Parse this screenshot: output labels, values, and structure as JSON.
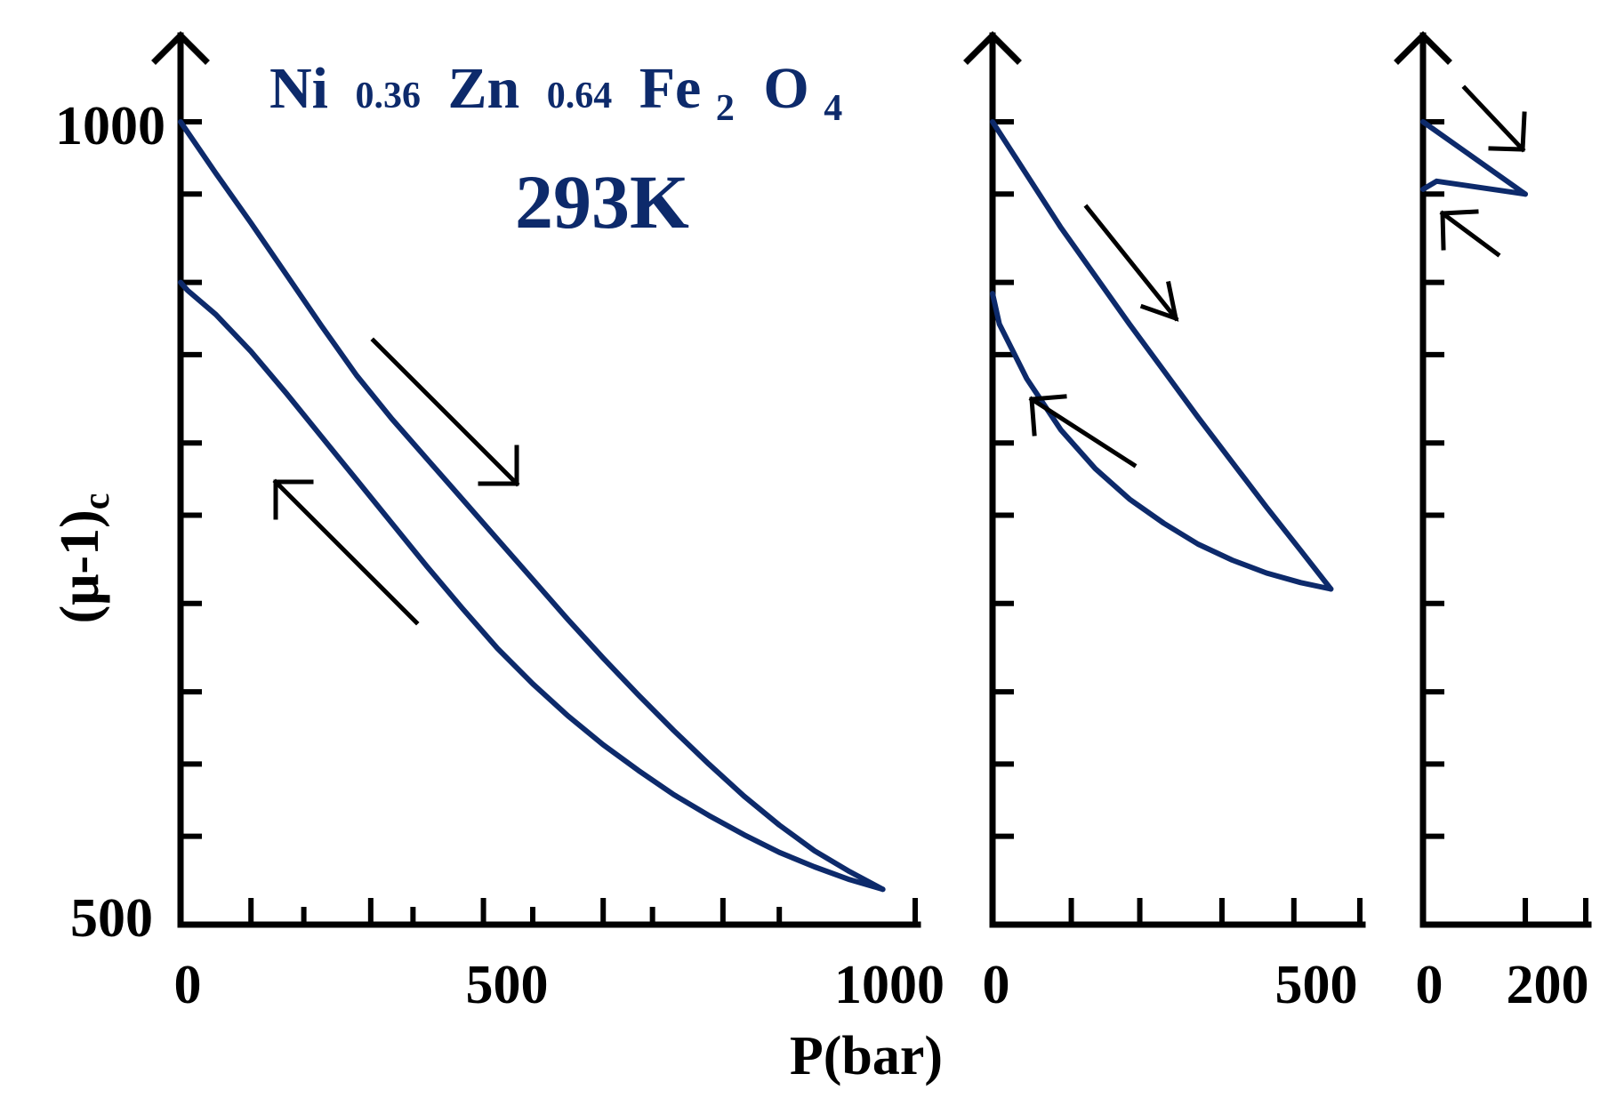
{
  "chart_data": {
    "type": "line",
    "title": {
      "formula": [
        {
          "text": "Ni",
          "sub": "0.36"
        },
        {
          "text": "Zn",
          "sub": "0.64"
        },
        {
          "text": "Fe",
          "sub": "2"
        },
        {
          "text": "O",
          "sub": "4"
        }
      ],
      "temperature": "293K"
    },
    "xlabel": "P(bar)",
    "ylabel": "(μ-1)",
    "ylabel_sub": "c",
    "ylim": [
      500,
      1000
    ],
    "yticks_labeled": [
      "1000",
      "500"
    ],
    "ytick_values": [
      1000,
      955,
      900,
      855,
      800,
      755,
      700,
      645,
      600,
      555,
      500
    ],
    "color": "#0d2a6b",
    "panels": [
      {
        "name": "sweep-1000-bar",
        "xlim": [
          0,
          1000
        ],
        "xtick_labels": [
          "0",
          "500",
          "1000"
        ],
        "xtick_values": [
          0,
          100,
          175,
          270,
          330,
          430,
          500,
          600,
          670,
          770,
          850,
          935
        ],
        "series": [
          {
            "name": "compression",
            "x": [
              0,
              50,
              100,
              150,
              200,
              250,
              300,
              350,
              400,
              450,
              500,
              550,
              600,
              650,
              700,
              750,
              800,
              850,
              900,
              950,
              997
            ],
            "y": [
              1000,
              968,
              937,
              905,
              873,
              842,
              815,
              790,
              765,
              740,
              715,
              690,
              666,
              643,
              621,
              600,
              580,
              562,
              546,
              533,
              522
            ]
          },
          {
            "name": "decompression",
            "x": [
              997,
              950,
              900,
              850,
              800,
              750,
              700,
              650,
              600,
              550,
              500,
              450,
              400,
              350,
              300,
              250,
              200,
              150,
              100,
              50,
              10,
              0
            ],
            "y": [
              522,
              528,
              536,
              545,
              556,
              568,
              581,
              596,
              612,
              630,
              650,
              672,
              697,
              723,
              750,
              777,
              804,
              831,
              857,
              880,
              895,
              900
            ]
          }
        ]
      },
      {
        "name": "sweep-500-bar",
        "xlim": [
          0,
          500
        ],
        "xtick_values": [
          0,
          115,
          215,
          335,
          440,
          550
        ],
        "xtick_labels": [
          "0",
          "500"
        ],
        "series": [
          {
            "name": "compression",
            "x": [
              0,
              50,
              100,
              150,
              200,
              250,
              300,
              350,
              400,
              450,
              494
            ],
            "y": [
              1000,
              967,
              934,
              904,
              874,
              845,
              816,
              788,
              760,
              733,
              709
            ]
          },
          {
            "name": "decompression",
            "x": [
              494,
              450,
              400,
              350,
              300,
              250,
              200,
              150,
              100,
              50,
              10,
              0
            ],
            "y": [
              709,
              713,
              719,
              727,
              737,
              750,
              765,
              784,
              808,
              840,
              874,
              893
            ]
          }
        ]
      },
      {
        "name": "sweep-200-bar",
        "xlim": [
          0,
          200
        ],
        "xtick_values": [
          0,
          150,
          200
        ],
        "xtick_labels": [
          "0",
          "200"
        ],
        "series": [
          {
            "name": "compression",
            "x": [
              0,
              150
            ],
            "y": [
              1000,
              955
            ]
          },
          {
            "name": "decompression",
            "x": [
              150,
              20,
              0
            ],
            "y": [
              955,
              963,
              958
            ]
          }
        ]
      }
    ],
    "annotations": [
      "compression-arrow",
      "decompression-arrow"
    ]
  }
}
